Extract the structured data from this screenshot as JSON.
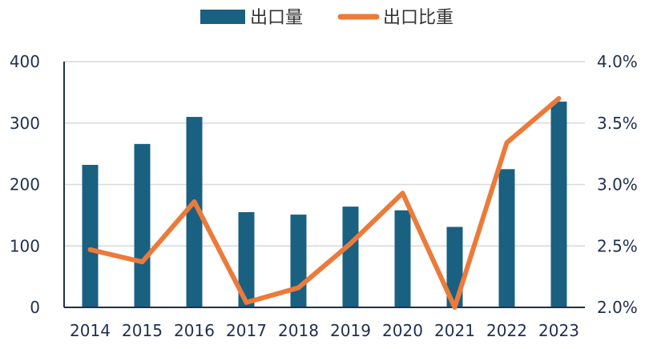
{
  "chart_data": {
    "type": "bar",
    "categories": [
      "2014",
      "2015",
      "2016",
      "2017",
      "2018",
      "2019",
      "2020",
      "2021",
      "2022",
      "2023"
    ],
    "series": [
      {
        "name": "出口量",
        "type": "bar",
        "axis": "left",
        "color": "#1a6080",
        "values": [
          232,
          266,
          310,
          155,
          151,
          164,
          158,
          131,
          225,
          335
        ]
      },
      {
        "name": "出口比重",
        "type": "line",
        "axis": "right",
        "color": "#ec7a3a",
        "values": [
          2.47,
          2.37,
          2.86,
          2.04,
          2.16,
          2.52,
          2.93,
          2.0,
          3.34,
          3.7
        ]
      }
    ],
    "left_axis": {
      "min": 0,
      "max": 400,
      "ticks": [
        "0",
        "100",
        "200",
        "300",
        "400"
      ]
    },
    "right_axis": {
      "min": 2.0,
      "max": 4.0,
      "ticks": [
        "2.0%",
        "2.5%",
        "3.0%",
        "3.5%",
        "4.0%"
      ]
    },
    "grid": true,
    "legend": "top-center"
  }
}
